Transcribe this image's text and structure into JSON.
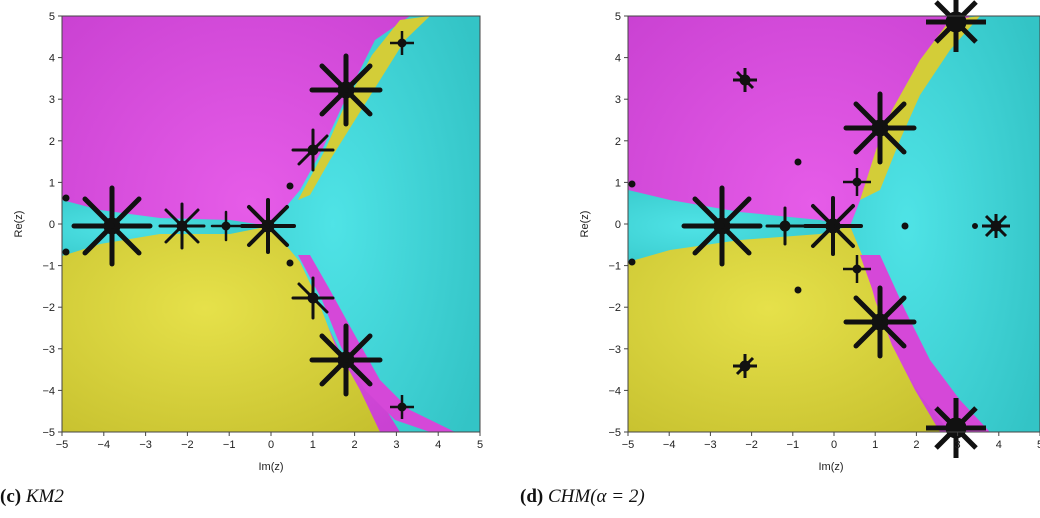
{
  "panels": [
    {
      "id": "c",
      "caption_label": "(c)",
      "caption_text": "KM2",
      "xlabel": "Im(z)",
      "ylabel": "Re(z)",
      "xticks": [
        "−5",
        "−4",
        "−3",
        "−2",
        "−1",
        "0",
        "1",
        "2",
        "3",
        "4",
        "5"
      ],
      "yticks": [
        "5",
        "4",
        "3",
        "2",
        "1",
        "0",
        "−1",
        "−2",
        "−3",
        "−4",
        "−5"
      ],
      "xlim": [
        -5,
        5
      ],
      "ylim": [
        -5,
        5
      ]
    },
    {
      "id": "d",
      "caption_label": "(d)",
      "caption_text": "CHM(α = 2)",
      "xlabel": "Im(z)",
      "ylabel": "Re(z)",
      "xticks": [
        "−5",
        "−4",
        "−3",
        "−2",
        "−1",
        "0",
        "1",
        "2",
        "3",
        "4",
        "5"
      ],
      "yticks": [
        "5",
        "4",
        "3",
        "2",
        "1",
        "0",
        "−1",
        "−2",
        "−3",
        "−4",
        "−5"
      ],
      "xlim": [
        -5,
        5
      ],
      "ylim": [
        -5,
        5
      ]
    }
  ],
  "colors": {
    "magenta": "#d548d8",
    "cyan": "#3cd2d4",
    "yellow": "#d3cd38",
    "boundary": "#111111"
  }
}
